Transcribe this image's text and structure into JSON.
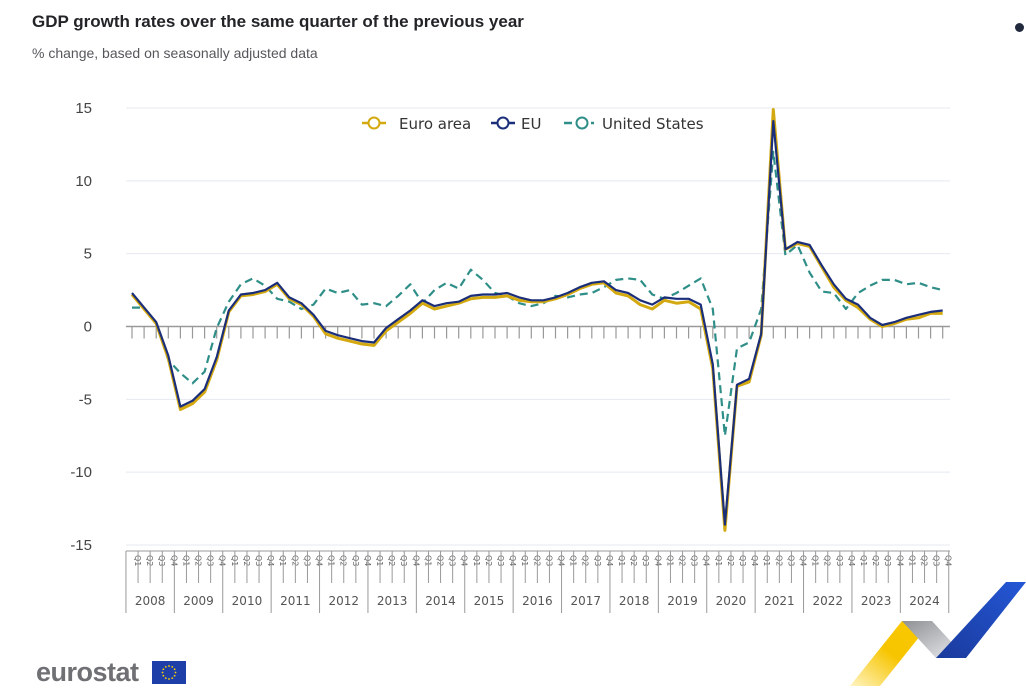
{
  "page": {
    "title": "GDP growth rates over the same quarter of the previous year",
    "subtitle": "% change, based on seasonally adjusted data",
    "logo_text": "eurostat"
  },
  "colors": {
    "euro_area": "#d4a90f",
    "eu": "#1b2e7a",
    "us": "#2f8f88",
    "grid": "#e4e9f1",
    "axis": "#888888"
  },
  "chart_data": {
    "type": "line",
    "title": "GDP growth rates over the same quarter of the previous year",
    "subtitle": "% change, based on seasonally adjusted data",
    "xlabel": "",
    "ylabel": "",
    "ylim": [
      -15,
      15
    ],
    "yticks": [
      "15",
      "10",
      "5",
      "0",
      "-5",
      "-10",
      "-15"
    ],
    "ytick_values": [
      15,
      10,
      5,
      0,
      -5,
      -10,
      -15
    ],
    "grid": true,
    "legend_position": "top-center",
    "years": [
      "2008",
      "2009",
      "2010",
      "2011",
      "2012",
      "2013",
      "2014",
      "2015",
      "2016",
      "2017",
      "2018",
      "2019",
      "2020",
      "2021",
      "2022",
      "2023",
      "2024"
    ],
    "quarters": [
      "Q1",
      "Q2",
      "Q3",
      "Q4"
    ],
    "series": [
      {
        "name": "Euro area",
        "style": "solid",
        "values": [
          2.2,
          1.2,
          0.2,
          -2.2,
          -5.7,
          -5.3,
          -4.5,
          -2.3,
          1.0,
          2.1,
          2.2,
          2.4,
          2.9,
          1.9,
          1.5,
          0.7,
          -0.5,
          -0.8,
          -1.0,
          -1.2,
          -1.3,
          -0.3,
          0.3,
          0.9,
          1.6,
          1.2,
          1.4,
          1.6,
          1.9,
          2.0,
          2.0,
          2.1,
          1.8,
          1.7,
          1.7,
          1.9,
          2.2,
          2.6,
          2.9,
          3.0,
          2.3,
          2.1,
          1.5,
          1.2,
          1.8,
          1.6,
          1.7,
          1.2,
          -2.9,
          -14.0,
          -4.1,
          -3.8,
          -0.6,
          14.9,
          5.3,
          5.7,
          5.5,
          4.1,
          2.7,
          1.8,
          1.3,
          0.5,
          0.0,
          0.2,
          0.5,
          0.6,
          0.9,
          0.9
        ]
      },
      {
        "name": "EU",
        "style": "solid",
        "values": [
          2.3,
          1.3,
          0.3,
          -2.0,
          -5.5,
          -5.1,
          -4.3,
          -2.1,
          1.1,
          2.2,
          2.3,
          2.5,
          3.0,
          2.0,
          1.6,
          0.8,
          -0.3,
          -0.6,
          -0.8,
          -1.0,
          -1.1,
          -0.1,
          0.5,
          1.1,
          1.8,
          1.4,
          1.6,
          1.7,
          2.1,
          2.2,
          2.2,
          2.3,
          2.0,
          1.8,
          1.8,
          2.0,
          2.3,
          2.7,
          3.0,
          3.1,
          2.5,
          2.3,
          1.8,
          1.5,
          2.0,
          1.9,
          1.9,
          1.5,
          -2.6,
          -13.6,
          -4.0,
          -3.6,
          -0.5,
          14.1,
          5.3,
          5.8,
          5.6,
          4.2,
          2.9,
          1.9,
          1.5,
          0.6,
          0.1,
          0.3,
          0.6,
          0.8,
          1.0,
          1.1
        ]
      },
      {
        "name": "United States",
        "style": "dashed",
        "values": [
          1.3,
          1.3,
          0.2,
          -2.3,
          -3.2,
          -3.9,
          -3.1,
          -0.1,
          1.7,
          2.9,
          3.3,
          2.8,
          1.9,
          1.7,
          1.2,
          1.5,
          2.6,
          2.3,
          2.5,
          1.5,
          1.6,
          1.4,
          2.1,
          2.9,
          1.6,
          2.5,
          3.0,
          2.6,
          3.9,
          3.2,
          2.3,
          2.1,
          1.6,
          1.4,
          1.6,
          2.1,
          2.0,
          2.2,
          2.3,
          2.7,
          3.2,
          3.3,
          3.2,
          2.2,
          1.9,
          2.3,
          2.8,
          3.3,
          1.2,
          -7.5,
          -1.5,
          -1.1,
          1.2,
          12.0,
          4.9,
          5.6,
          3.7,
          2.4,
          2.3,
          1.2,
          2.3,
          2.8,
          3.2,
          3.2,
          2.9,
          3.0,
          2.7,
          2.5
        ]
      }
    ]
  }
}
